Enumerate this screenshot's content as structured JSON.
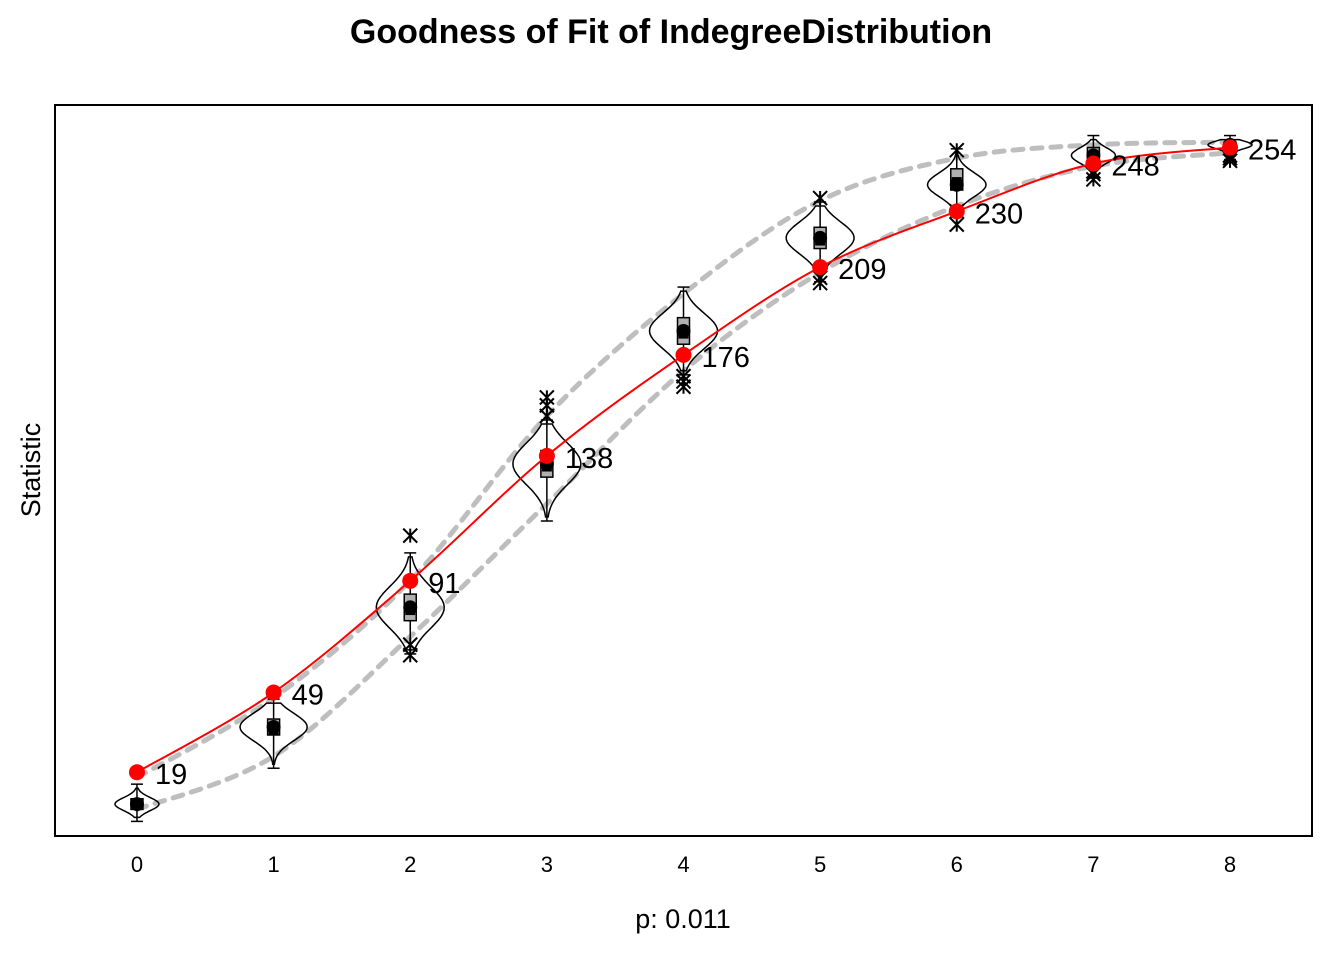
{
  "chart_data": {
    "type": "line",
    "title": "Goodness of Fit of IndegreeDistribution",
    "xlabel": "p: 0.011",
    "ylabel": "Statistic",
    "x": [
      0,
      1,
      2,
      3,
      4,
      5,
      6,
      7,
      8
    ],
    "xlim": [
      -0.6,
      8.6
    ],
    "ylim": [
      -5,
      270
    ],
    "grid": false,
    "legend": "none",
    "series": [
      {
        "role": "observed",
        "color": "#ff0000",
        "values": [
          19,
          49,
          91,
          138,
          176,
          209,
          230,
          248,
          254
        ],
        "labels": [
          "19",
          "49",
          "91",
          "138",
          "176",
          "209",
          "230",
          "248",
          "254"
        ]
      },
      {
        "role": "simulated_mean",
        "color": "#000000",
        "values": [
          7,
          36,
          81,
          135,
          185,
          220,
          240,
          251,
          255
        ]
      },
      {
        "role": "simulated_median",
        "color": "#000000",
        "values": [
          7,
          35,
          80,
          134,
          184,
          219,
          241,
          250,
          255
        ]
      },
      {
        "role": "interval_upper",
        "color": "#bebebe",
        "values": [
          17,
          47,
          91,
          153,
          199,
          234,
          250,
          255,
          256
        ]
      },
      {
        "role": "interval_lower",
        "color": "#bebebe",
        "values": [
          5,
          25,
          70,
          120,
          170,
          207,
          232,
          247,
          252
        ]
      }
    ],
    "distributions": [
      {
        "x": 0,
        "low": 2,
        "high": 13,
        "q1": 5,
        "q3": 9,
        "extremes": []
      },
      {
        "x": 1,
        "low": 22,
        "high": 45,
        "q1": 33,
        "q3": 39,
        "extremes": []
      },
      {
        "x": 2,
        "low": 65,
        "high": 100,
        "q1": 76,
        "q3": 86,
        "extremes": [
          63,
          67,
          108
        ]
      },
      {
        "x": 3,
        "low": 115,
        "high": 150,
        "q1": 130,
        "q3": 140,
        "extremes": [
          153,
          157,
          160
        ]
      },
      {
        "x": 4,
        "low": 170,
        "high": 200,
        "q1": 180,
        "q3": 190,
        "extremes": [
          164,
          166,
          168
        ]
      },
      {
        "x": 5,
        "low": 205,
        "high": 232,
        "q1": 216,
        "q3": 224,
        "extremes": [
          203,
          205,
          235
        ]
      },
      {
        "x": 6,
        "low": 232,
        "high": 252,
        "q1": 238,
        "q3": 246,
        "extremes": [
          225,
          230,
          253
        ]
      },
      {
        "x": 7,
        "low": 244,
        "high": 257,
        "q1": 248,
        "q3": 254,
        "extremes": [
          242,
          244,
          245
        ]
      },
      {
        "x": 8,
        "low": 251,
        "high": 257,
        "q1": 253,
        "q3": 256,
        "extremes": [
          249,
          250,
          251
        ]
      }
    ]
  }
}
